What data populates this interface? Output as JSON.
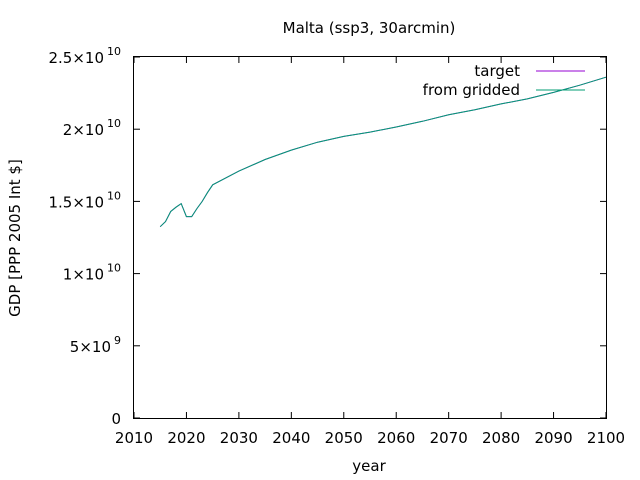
{
  "chart_data": {
    "type": "line",
    "title": "Malta (ssp3, 30arcmin)",
    "xlabel": "year",
    "ylabel": "GDP [PPP 2005 Int $]",
    "xlim": [
      2010,
      2100
    ],
    "ylim": [
      0,
      25000000000
    ],
    "x_ticks": [
      2010,
      2020,
      2030,
      2040,
      2050,
      2060,
      2070,
      2080,
      2090,
      2100
    ],
    "y_ticks": [
      {
        "value": 0,
        "mantissa": "0",
        "exponent": ""
      },
      {
        "value": 5000000000,
        "mantissa": "5×10",
        "exponent": "9"
      },
      {
        "value": 10000000000,
        "mantissa": "1×10",
        "exponent": "10"
      },
      {
        "value": 15000000000,
        "mantissa": "1.5×10",
        "exponent": "10"
      },
      {
        "value": 20000000000,
        "mantissa": "2×10",
        "exponent": "10"
      },
      {
        "value": 25000000000,
        "mantissa": "2.5×10",
        "exponent": "10"
      }
    ],
    "grid": false,
    "legend_position": "top-right",
    "series": [
      {
        "name": "target",
        "color": "#9400d3",
        "x": [
          2015,
          2016,
          2017,
          2018,
          2019,
          2020,
          2021,
          2022,
          2023,
          2024,
          2025,
          2030,
          2035,
          2040,
          2045,
          2050,
          2055,
          2060,
          2065,
          2070,
          2075,
          2080,
          2085,
          2090,
          2095,
          2100
        ],
        "y": [
          13250000000,
          13600000000,
          14300000000,
          14600000000,
          14850000000,
          13950000000,
          13950000000,
          14500000000,
          15000000000,
          15600000000,
          16150000000,
          17100000000,
          17900000000,
          18550000000,
          19100000000,
          19500000000,
          19800000000,
          20150000000,
          20550000000,
          21000000000,
          21350000000,
          21750000000,
          22100000000,
          22550000000,
          23050000000,
          23600000000
        ]
      },
      {
        "name": "from gridded",
        "color": "#009e73",
        "x": [
          2015,
          2016,
          2017,
          2018,
          2019,
          2020,
          2021,
          2022,
          2023,
          2024,
          2025,
          2030,
          2035,
          2040,
          2045,
          2050,
          2055,
          2060,
          2065,
          2070,
          2075,
          2080,
          2085,
          2090,
          2095,
          2100
        ],
        "y": [
          13250000000,
          13600000000,
          14300000000,
          14600000000,
          14850000000,
          13950000000,
          13950000000,
          14500000000,
          15000000000,
          15600000000,
          16150000000,
          17100000000,
          17900000000,
          18550000000,
          19100000000,
          19500000000,
          19800000000,
          20150000000,
          20550000000,
          21000000000,
          21350000000,
          21750000000,
          22100000000,
          22550000000,
          23050000000,
          23600000000
        ]
      }
    ]
  }
}
